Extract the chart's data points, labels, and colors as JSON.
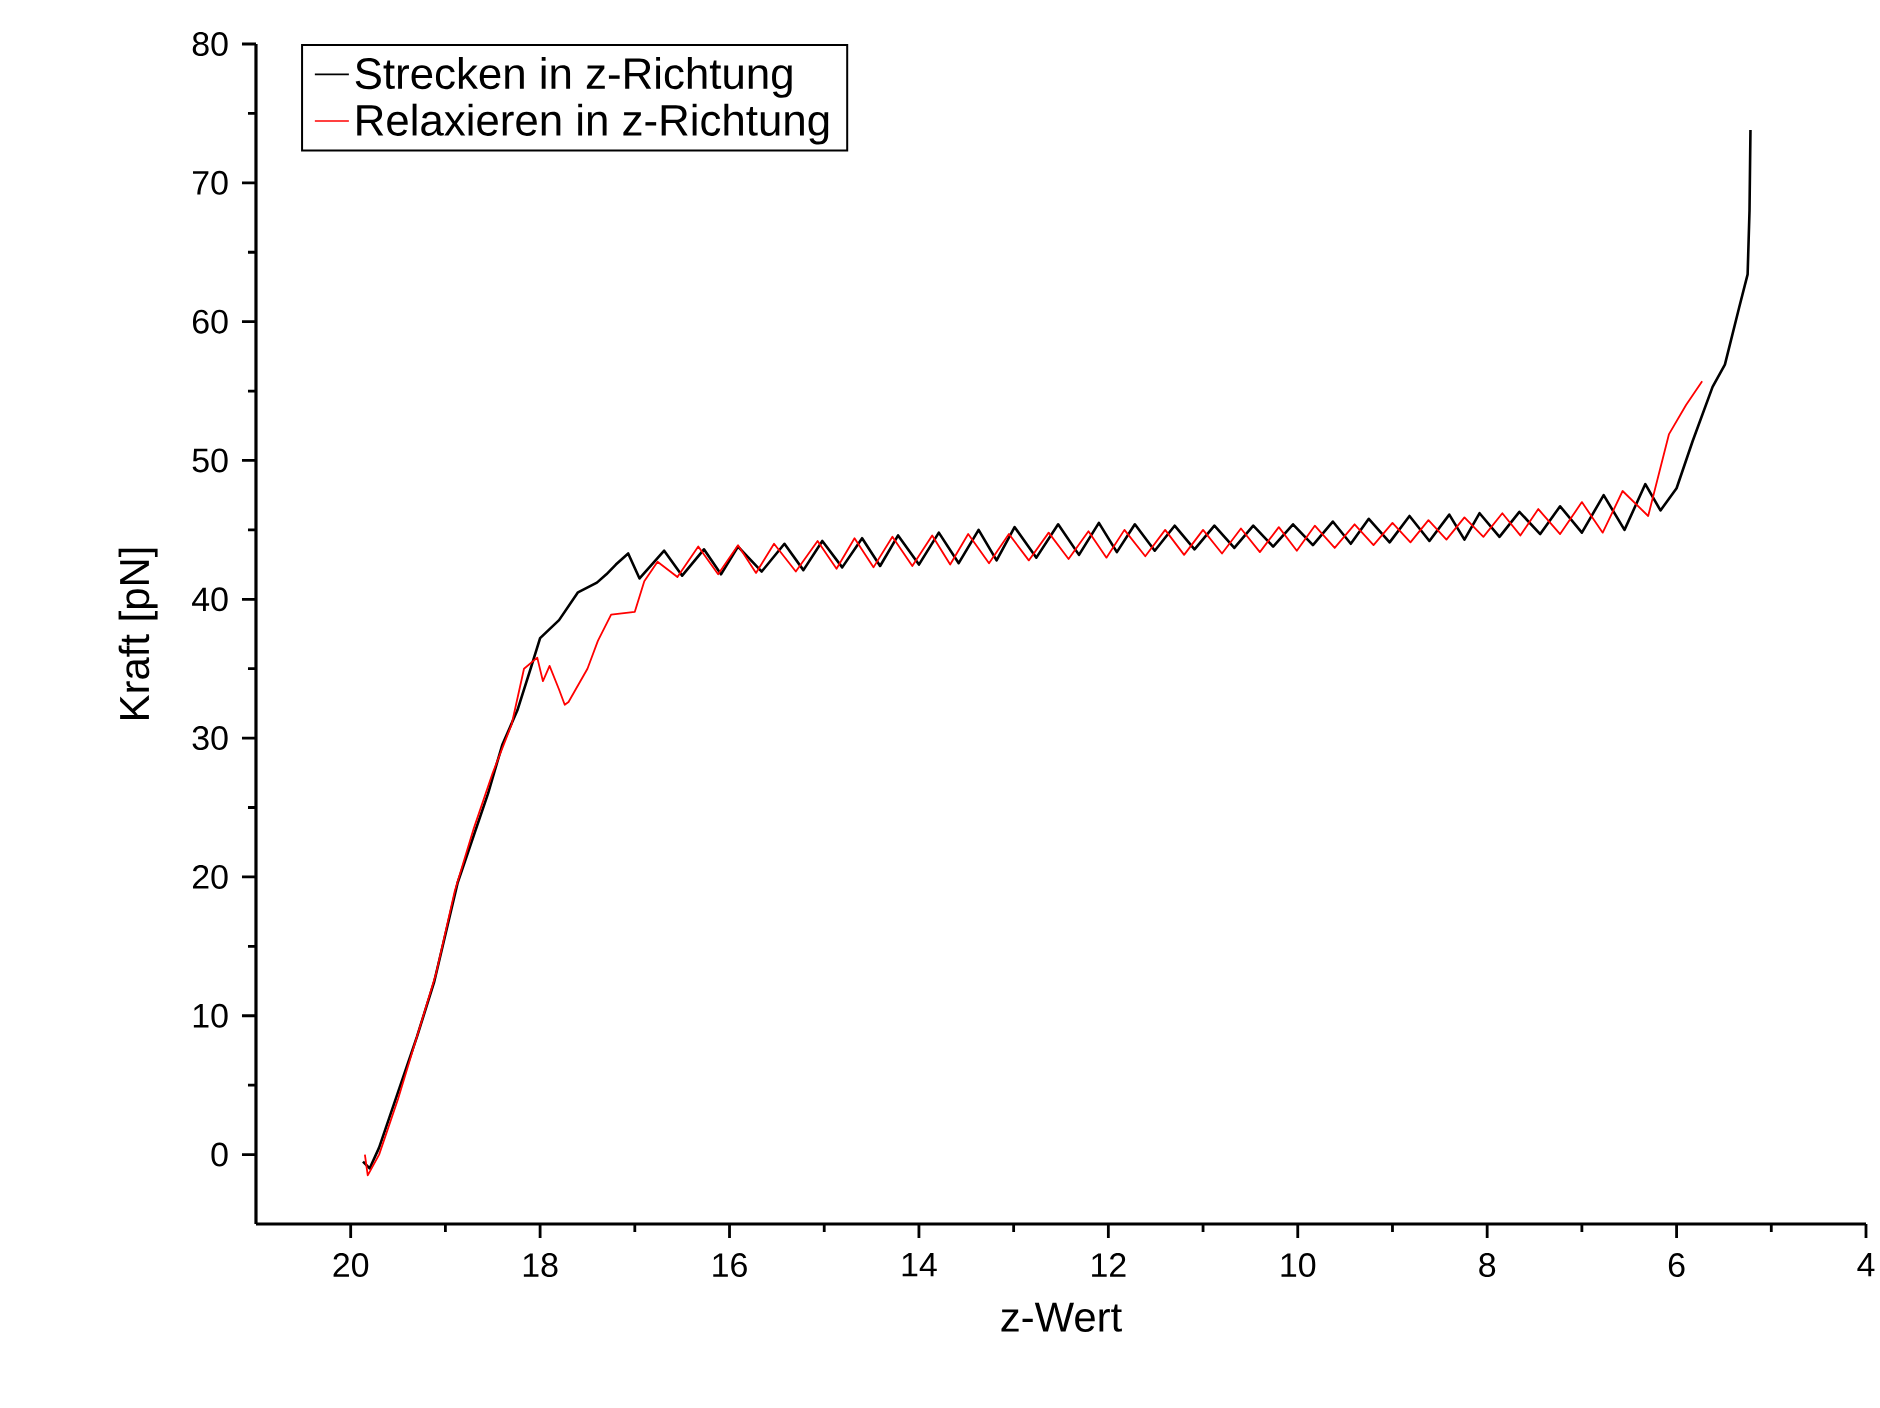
{
  "chart_data": {
    "type": "line",
    "xlabel": "z-Wert",
    "ylabel": "Kraft [pN]",
    "xlim": [
      21,
      4
    ],
    "ylim": [
      -5,
      80
    ],
    "xticks": [
      20,
      18,
      16,
      14,
      12,
      10,
      8,
      6,
      4
    ],
    "yticks": [
      0,
      10,
      20,
      30,
      40,
      50,
      60,
      70,
      80
    ],
    "legend": "top left",
    "series": [
      {
        "name": "Strecken in z-Richtung",
        "color": "#000000",
        "x": [
          19.87,
          19.8,
          19.7,
          19.5,
          19.3,
          19.12,
          18.87,
          18.7,
          18.55,
          18.4,
          18.24,
          18.1,
          18.0,
          17.8,
          17.6,
          17.4,
          17.3,
          17.2,
          17.07,
          16.95,
          16.69,
          16.5,
          16.27,
          16.09,
          15.91,
          15.66,
          15.42,
          15.22,
          15.02,
          14.81,
          14.6,
          14.41,
          14.22,
          14.0,
          13.79,
          13.58,
          13.37,
          13.18,
          12.99,
          12.76,
          12.53,
          12.31,
          12.1,
          11.91,
          11.72,
          11.51,
          11.3,
          11.09,
          10.88,
          10.67,
          10.47,
          10.26,
          10.05,
          9.84,
          9.63,
          9.44,
          9.25,
          9.03,
          8.82,
          8.61,
          8.4,
          8.24,
          8.08,
          7.87,
          7.66,
          7.44,
          7.23,
          7.0,
          6.77,
          6.55,
          6.33,
          6.17,
          6.0,
          5.83,
          5.62,
          5.49,
          5.34,
          5.25,
          5.23,
          5.22
        ],
        "values": [
          -0.5,
          -1.0,
          0.5,
          4.5,
          8.5,
          12.4,
          19.6,
          23,
          26,
          29.5,
          32,
          35,
          37.2,
          38.5,
          40.5,
          41.2,
          41.8,
          42.5,
          43.3,
          41.5,
          43.5,
          41.7,
          43.6,
          41.8,
          43.8,
          42.0,
          44.0,
          42.1,
          44.2,
          42.3,
          44.4,
          42.4,
          44.6,
          42.5,
          44.8,
          42.6,
          45.0,
          42.8,
          45.2,
          43.0,
          45.4,
          43.2,
          45.5,
          43.4,
          45.4,
          43.5,
          45.3,
          43.6,
          45.3,
          43.7,
          45.3,
          43.8,
          45.4,
          43.9,
          45.6,
          44.0,
          45.8,
          44.1,
          46.0,
          44.2,
          46.1,
          44.3,
          46.2,
          44.5,
          46.3,
          44.7,
          46.7,
          44.8,
          47.5,
          45.0,
          48.3,
          46.4,
          48.0,
          51.4,
          55.3,
          56.9,
          61.0,
          63.4,
          68.0,
          73.8
        ]
      },
      {
        "name": "Relaxieren in z-Richtung",
        "color": "#ff0000",
        "x": [
          19.85,
          19.82,
          19.7,
          19.5,
          19.3,
          19.1,
          18.9,
          18.7,
          18.5,
          18.3,
          18.17,
          18.03,
          17.97,
          17.9,
          17.8,
          17.74,
          17.7,
          17.5,
          17.39,
          17.25,
          17.0,
          16.9,
          16.76,
          16.55,
          16.33,
          16.12,
          15.91,
          15.72,
          15.53,
          15.3,
          15.07,
          14.87,
          14.68,
          14.48,
          14.28,
          14.07,
          13.86,
          13.67,
          13.48,
          13.26,
          13.05,
          12.84,
          12.63,
          12.42,
          12.21,
          12.02,
          11.83,
          11.61,
          11.4,
          11.2,
          11.0,
          10.8,
          10.6,
          10.4,
          10.2,
          10.01,
          9.82,
          9.61,
          9.4,
          9.2,
          9.0,
          8.81,
          8.62,
          8.43,
          8.24,
          8.04,
          7.84,
          7.65,
          7.46,
          7.23,
          7.0,
          6.78,
          6.57,
          6.3,
          6.08,
          5.9,
          5.73
        ],
        "values": [
          0,
          -1.5,
          0,
          4,
          8.5,
          13,
          19,
          23.5,
          27.5,
          31,
          35,
          35.8,
          34.1,
          35.2,
          33.5,
          32.4,
          32.6,
          35,
          37,
          38.9,
          39.1,
          41.3,
          42.7,
          41.6,
          43.8,
          41.8,
          43.9,
          41.9,
          44.0,
          42.0,
          44.2,
          42.2,
          44.4,
          42.3,
          44.5,
          42.4,
          44.6,
          42.5,
          44.7,
          42.6,
          44.7,
          42.8,
          44.8,
          42.9,
          44.9,
          43.0,
          45.0,
          43.1,
          45.0,
          43.2,
          45.0,
          43.3,
          45.1,
          43.4,
          45.2,
          43.5,
          45.3,
          43.7,
          45.4,
          43.9,
          45.5,
          44.1,
          45.7,
          44.3,
          45.9,
          44.5,
          46.2,
          44.6,
          46.5,
          44.7,
          47.0,
          44.8,
          47.8,
          46.0,
          51.9,
          54.0,
          55.7
        ]
      }
    ]
  }
}
